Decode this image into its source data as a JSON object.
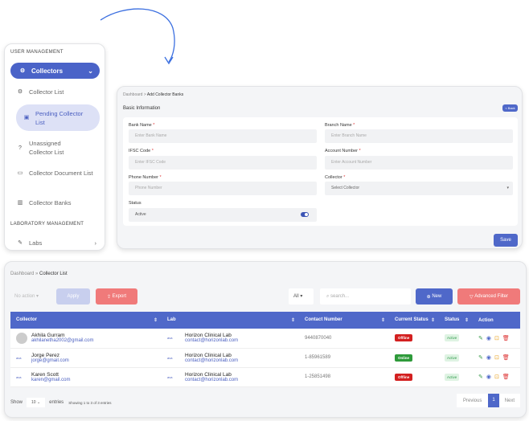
{
  "sidebar": {
    "section_user": "USER MANAGEMENT",
    "collectors": "Collectors",
    "items": [
      {
        "label": "Collector List",
        "icon": "user-gear-icon"
      },
      {
        "label": "Pending Collector List",
        "icon": "id-card-icon"
      },
      {
        "label": "Unassigned Collector List",
        "icon": "question-circle-icon"
      },
      {
        "label": "Collector Document List",
        "icon": "folder-user-icon"
      },
      {
        "label": "Collector Banks",
        "icon": "bank-icon"
      }
    ],
    "section_lab": "LABORATORY MANAGEMENT",
    "labs": "Labs"
  },
  "form": {
    "breadcrumb": [
      "Dashboard",
      "Add Collector Banks"
    ],
    "title": "Basic Information",
    "back": "< Back",
    "save": "Save",
    "fields": {
      "bank_name": {
        "label": "Bank Name",
        "placeholder": "Enter Bank Name"
      },
      "branch_name": {
        "label": "Branch Name",
        "placeholder": "Enter Branch Name"
      },
      "ifsc": {
        "label": "IFSC Code",
        "placeholder": "Enter IFSC Code"
      },
      "account": {
        "label": "Account Number",
        "placeholder": "Enter Account Number"
      },
      "phone": {
        "label": "Phone Number",
        "placeholder": "Phone Number"
      },
      "collector": {
        "label": "Collector",
        "placeholder": "Select Collector"
      },
      "status": {
        "label": "Status",
        "value": "Active",
        "on": true
      }
    },
    "required": "*"
  },
  "list": {
    "breadcrumb": [
      "Dashboard",
      "Collector List"
    ],
    "bulk_action": "No action",
    "apply": "Apply",
    "export": "Export",
    "filter_all": "All",
    "search_placeholder": "search...",
    "new": "New",
    "advanced": "Advanced Filter",
    "columns": [
      "Collector",
      "Lab",
      "Contact Number",
      "Current Status",
      "Status",
      "Action"
    ],
    "rows": [
      {
        "name": "Akhila Gurram",
        "email": "akhilanetha2002@gmail.com",
        "lab": "Horizon Clinical Lab",
        "lab_email": "contact@horizonlab.com",
        "contact": "9440870040",
        "current": "Offline",
        "status": "Active",
        "avatar": "avatar-placeholder"
      },
      {
        "name": "Jorge Perez",
        "email": "jorge@gmail.com",
        "lab": "Horizon Clinical Lab",
        "lab_email": "contact@horizonlab.com",
        "contact": "1-85961589",
        "current": "Online",
        "status": "Active",
        "avatar": "ava"
      },
      {
        "name": "Karen Scott",
        "email": "karen@gmail.com",
        "lab": "Horizon Clinical Lab",
        "lab_email": "contact@horizonlab.com",
        "contact": "1-25851498",
        "current": "Offline",
        "status": "Active",
        "avatar": "ava"
      }
    ],
    "lab_avatar": "ava",
    "show": "Show",
    "page_size": "10",
    "entries": "entries",
    "showing": "Showing 1 to 3 of 3 entries",
    "previous": "Previous",
    "page": "1",
    "next": "Next"
  },
  "colors": {
    "primary": "#4f68c9",
    "danger": "#f07a7a",
    "offline": "#d32020",
    "online": "#2e9a3a"
  }
}
